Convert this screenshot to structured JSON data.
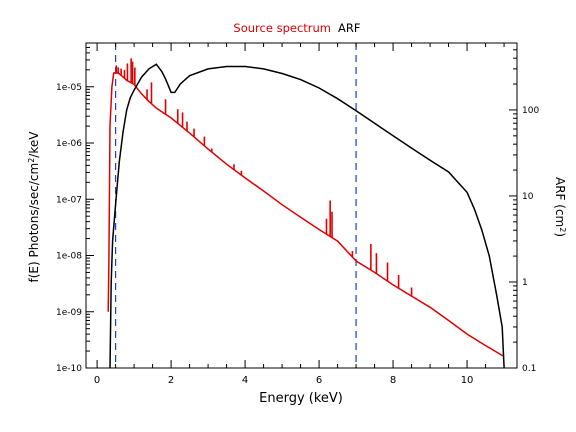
{
  "chart_data": {
    "type": "line",
    "title_parts": [
      {
        "text": "Source spectrum",
        "color": "#e00000"
      },
      {
        "text": "ARF",
        "color": "#000000"
      }
    ],
    "xlabel": "Energy (keV)",
    "ylabel_left": {
      "main": "f(E)  Photons/sec/cm",
      "sup": "2",
      "tail": "/keV"
    },
    "ylabel_right": {
      "main": "ARF (cm",
      "sup": "2",
      "tail": ")"
    },
    "xlim": [
      -0.3,
      11.35
    ],
    "ylim_left": [
      1e-10,
      6e-05
    ],
    "ylim_right": [
      0.1,
      600
    ],
    "yscale_left": "log",
    "yscale_right": "log",
    "x_ticks": [
      "0",
      "2",
      "4",
      "6",
      "8",
      "10"
    ],
    "y_left_ticks": [
      "1e-10",
      "1e-09",
      "1e-08",
      "1e-07",
      "1e-06",
      "1e-05"
    ],
    "y_right_ticks": [
      "0.1",
      "1",
      "10",
      "100"
    ],
    "vlines": [
      0.5,
      7.0
    ],
    "vline_color": "#1f3fbf",
    "series": [
      {
        "name": "Source spectrum",
        "color": "#e00000",
        "axis": "left",
        "points": [
          [
            0.3,
            1e-09
          ],
          [
            0.32,
            8e-09
          ],
          [
            0.35,
            2e-06
          ],
          [
            0.4,
            1e-05
          ],
          [
            0.45,
            1.75e-05
          ],
          [
            0.5,
            1.8e-05
          ],
          [
            0.6,
            1.7e-05
          ],
          [
            0.7,
            1.5e-05
          ],
          [
            0.8,
            1.3e-05
          ],
          [
            0.9,
            1.2e-05
          ],
          [
            1.0,
            1.1e-05
          ],
          [
            1.2,
            7.5e-06
          ],
          [
            1.4,
            5.5e-06
          ],
          [
            1.6,
            4.2e-06
          ],
          [
            1.8,
            3.4e-06
          ],
          [
            2.0,
            2.8e-06
          ],
          [
            2.5,
            1.5e-06
          ],
          [
            3.0,
            7.8e-07
          ],
          [
            3.5,
            4.2e-07
          ],
          [
            4.0,
            2.4e-07
          ],
          [
            4.5,
            1.4e-07
          ],
          [
            5.0,
            8e-08
          ],
          [
            5.5,
            4.8e-08
          ],
          [
            6.0,
            2.9e-08
          ],
          [
            6.5,
            1.8e-08
          ],
          [
            7.0,
            8e-09
          ],
          [
            7.5,
            5e-09
          ],
          [
            8.0,
            3e-09
          ],
          [
            8.5,
            1.9e-09
          ],
          [
            9.0,
            1.2e-09
          ],
          [
            9.5,
            7e-10
          ],
          [
            10.0,
            4e-10
          ],
          [
            10.5,
            2.5e-10
          ],
          [
            11.0,
            1.6e-10
          ]
        ]
      },
      {
        "name": "ARF",
        "color": "#000000",
        "axis": "right",
        "points": [
          [
            0.35,
            0.1
          ],
          [
            0.38,
            1.0
          ],
          [
            0.42,
            3.0
          ],
          [
            0.5,
            8.0
          ],
          [
            0.6,
            25.0
          ],
          [
            0.7,
            55.0
          ],
          [
            0.8,
            100.0
          ],
          [
            0.9,
            140.0
          ],
          [
            1.0,
            170.0
          ],
          [
            1.2,
            240.0
          ],
          [
            1.4,
            300.0
          ],
          [
            1.6,
            340.0
          ],
          [
            1.75,
            280.0
          ],
          [
            1.85,
            230.0
          ],
          [
            2.0,
            160.0
          ],
          [
            2.1,
            160.0
          ],
          [
            2.25,
            200.0
          ],
          [
            2.5,
            250.0
          ],
          [
            3.0,
            300.0
          ],
          [
            3.5,
            320.0
          ],
          [
            4.0,
            320.0
          ],
          [
            4.5,
            300.0
          ],
          [
            5.0,
            265.0
          ],
          [
            5.5,
            225.0
          ],
          [
            6.0,
            180.0
          ],
          [
            6.5,
            135.0
          ],
          [
            7.0,
            98.0
          ],
          [
            7.5,
            70.0
          ],
          [
            8.0,
            50.0
          ],
          [
            8.5,
            36.0
          ],
          [
            9.0,
            26.0
          ],
          [
            9.5,
            19.0
          ],
          [
            10.0,
            11.0
          ],
          [
            10.2,
            7.0
          ],
          [
            10.4,
            4.0
          ],
          [
            10.6,
            2.0
          ],
          [
            10.8,
            0.7
          ],
          [
            10.95,
            0.3
          ],
          [
            11.0,
            0.1
          ]
        ]
      }
    ],
    "emission_lines": [
      {
        "x": 0.52,
        "peak": 2.4e-05
      },
      {
        "x": 0.57,
        "peak": 2.2e-05
      },
      {
        "x": 0.65,
        "peak": 2.1e-05
      },
      {
        "x": 0.74,
        "peak": 2e-05
      },
      {
        "x": 0.82,
        "peak": 2.6e-05
      },
      {
        "x": 0.92,
        "peak": 3.2e-05
      },
      {
        "x": 0.96,
        "peak": 2.8e-05
      },
      {
        "x": 1.02,
        "peak": 2.2e-05
      },
      {
        "x": 1.35,
        "peak": 9e-06
      },
      {
        "x": 1.47,
        "peak": 1.2e-05
      },
      {
        "x": 1.85,
        "peak": 6e-06
      },
      {
        "x": 2.18,
        "peak": 4e-06
      },
      {
        "x": 2.31,
        "peak": 3.5e-06
      },
      {
        "x": 2.43,
        "peak": 2.4e-06
      },
      {
        "x": 2.62,
        "peak": 1.8e-06
      },
      {
        "x": 2.9,
        "peak": 1.3e-06
      },
      {
        "x": 3.1,
        "peak": 8e-07
      },
      {
        "x": 3.7,
        "peak": 4.2e-07
      },
      {
        "x": 3.9,
        "peak": 3.2e-07
      },
      {
        "x": 6.2,
        "peak": 4.5e-08
      },
      {
        "x": 6.3,
        "peak": 9.5e-08
      },
      {
        "x": 6.35,
        "peak": 6e-08
      },
      {
        "x": 6.9,
        "peak": 1.2e-08
      },
      {
        "x": 7.4,
        "peak": 1.6e-08
      },
      {
        "x": 7.55,
        "peak": 1.1e-08
      },
      {
        "x": 7.85,
        "peak": 7.5e-09
      },
      {
        "x": 8.15,
        "peak": 4.5e-09
      },
      {
        "x": 8.5,
        "peak": 2.7e-09
      }
    ]
  }
}
